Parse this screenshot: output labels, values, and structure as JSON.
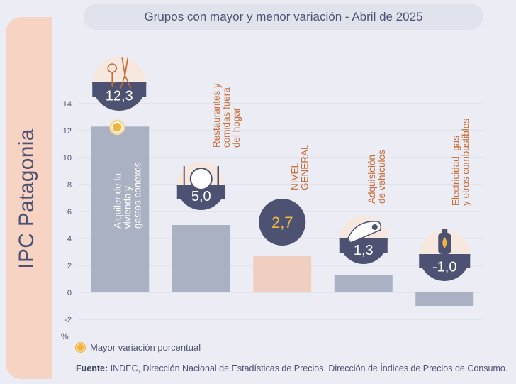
{
  "region_title": "IPC Patagonia",
  "title": "Grupos con mayor y menor variación - Abril de 2025",
  "legend": {
    "label": "Mayor variación porcentual"
  },
  "source": {
    "prefix": "Fuente:",
    "text": "INDEC, Dirección Nacional de Estadísticas de Precios. Dirección de Índices de Precios de Consumo."
  },
  "chart_data": {
    "type": "bar",
    "y_unit": "%",
    "ylim": [
      -2,
      14
    ],
    "yticks": [
      "14",
      "12",
      "10",
      "8",
      "6",
      "4",
      "2",
      "0",
      "-2"
    ],
    "grid": true,
    "categories": [
      [
        "Alquiler de la",
        "vivienda y",
        "gastos conexos"
      ],
      [
        "Restaurantes y",
        "comidas fuera",
        "del hogar"
      ],
      [
        "NIVEL",
        "GENERAL"
      ],
      [
        "Adquisición",
        "de vehículos"
      ],
      [
        "Electricidad, gas",
        "y otros combustibles"
      ]
    ],
    "values": [
      12.3,
      5.0,
      2.7,
      1.3,
      -1.0
    ],
    "value_labels": [
      "12,3",
      "5,0",
      "2,7",
      "1,3",
      "-1,0"
    ],
    "icons": [
      "keys-pliers-icon",
      "plate-cutlery-icon",
      "",
      "car-icon",
      "gas-cylinder-icon"
    ],
    "highlight_index": 0,
    "colors": {
      "bar": "#a9b1c3",
      "bar_general": "#f1cfc0",
      "badge": "#4d5272",
      "badge_text_general": "#f5b841",
      "highlight": "#f2b53b",
      "grid": "#d9dae4"
    }
  }
}
